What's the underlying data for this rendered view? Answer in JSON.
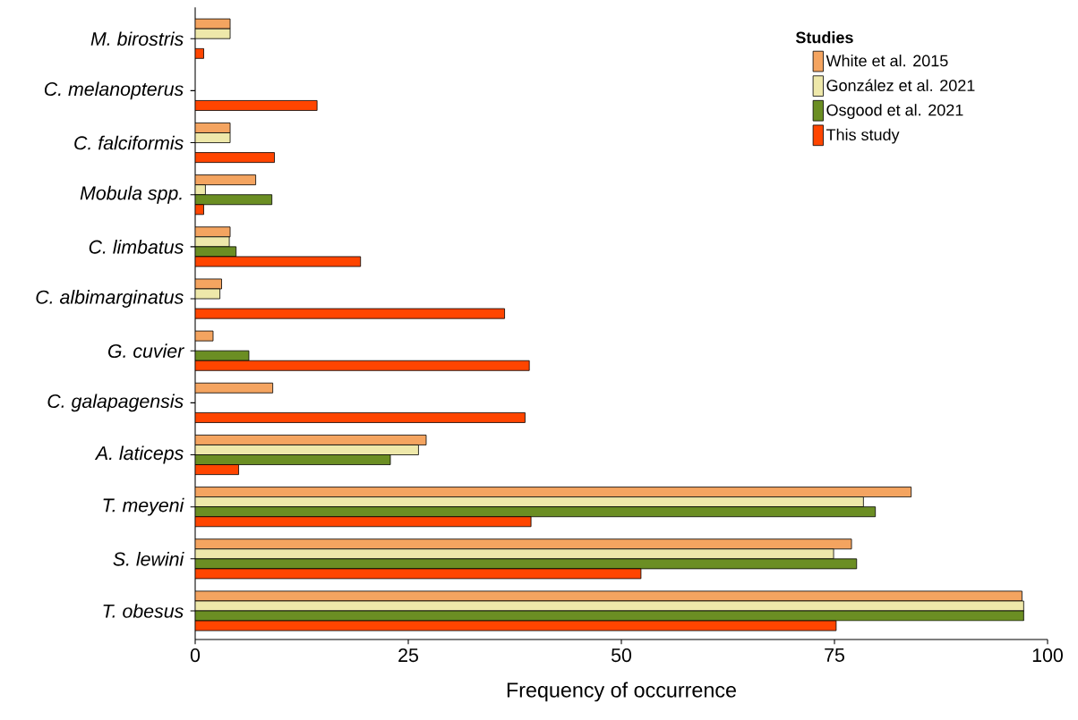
{
  "chart_data": {
    "type": "bar",
    "orientation": "horizontal",
    "xlabel": "Frequency of occurrence",
    "legend_title": "Studies",
    "legend": "top right",
    "grid": false,
    "categories": [
      "M. birostris",
      "C. melanopterus",
      "C. falciformis",
      "Mobula spp.",
      "C. limbatus",
      "C. albimarginatus",
      "G. cuvier",
      "C. galapagensis",
      "A. laticeps",
      "T. meyeni",
      "S. lewini",
      "T. obesus"
    ],
    "xlim": [
      0,
      100
    ],
    "xticks": [
      0,
      25,
      50,
      75,
      100
    ],
    "series": [
      {
        "name": "White et al. 2015",
        "color": "#f4a460",
        "values": [
          4.1,
          null,
          4.1,
          7.1,
          4.1,
          3.1,
          2.1,
          9.1,
          27.1,
          84.0,
          77.0,
          97.0
        ]
      },
      {
        "name": "González et al. 2021",
        "color": "#eee8aa",
        "values": [
          4.1,
          null,
          4.1,
          1.2,
          4.0,
          2.9,
          null,
          null,
          26.2,
          78.4,
          74.9,
          97.2
        ]
      },
      {
        "name": "Osgood et al. 2021",
        "color": "#6b8e23",
        "values": [
          null,
          null,
          null,
          9.0,
          4.8,
          null,
          6.3,
          null,
          22.9,
          79.8,
          77.6,
          97.2
        ]
      },
      {
        "name": "This study",
        "color": "#ff4500",
        "values": [
          1.0,
          14.3,
          9.3,
          1.0,
          19.4,
          36.3,
          39.2,
          38.7,
          5.1,
          39.4,
          52.3,
          75.2
        ]
      }
    ]
  }
}
